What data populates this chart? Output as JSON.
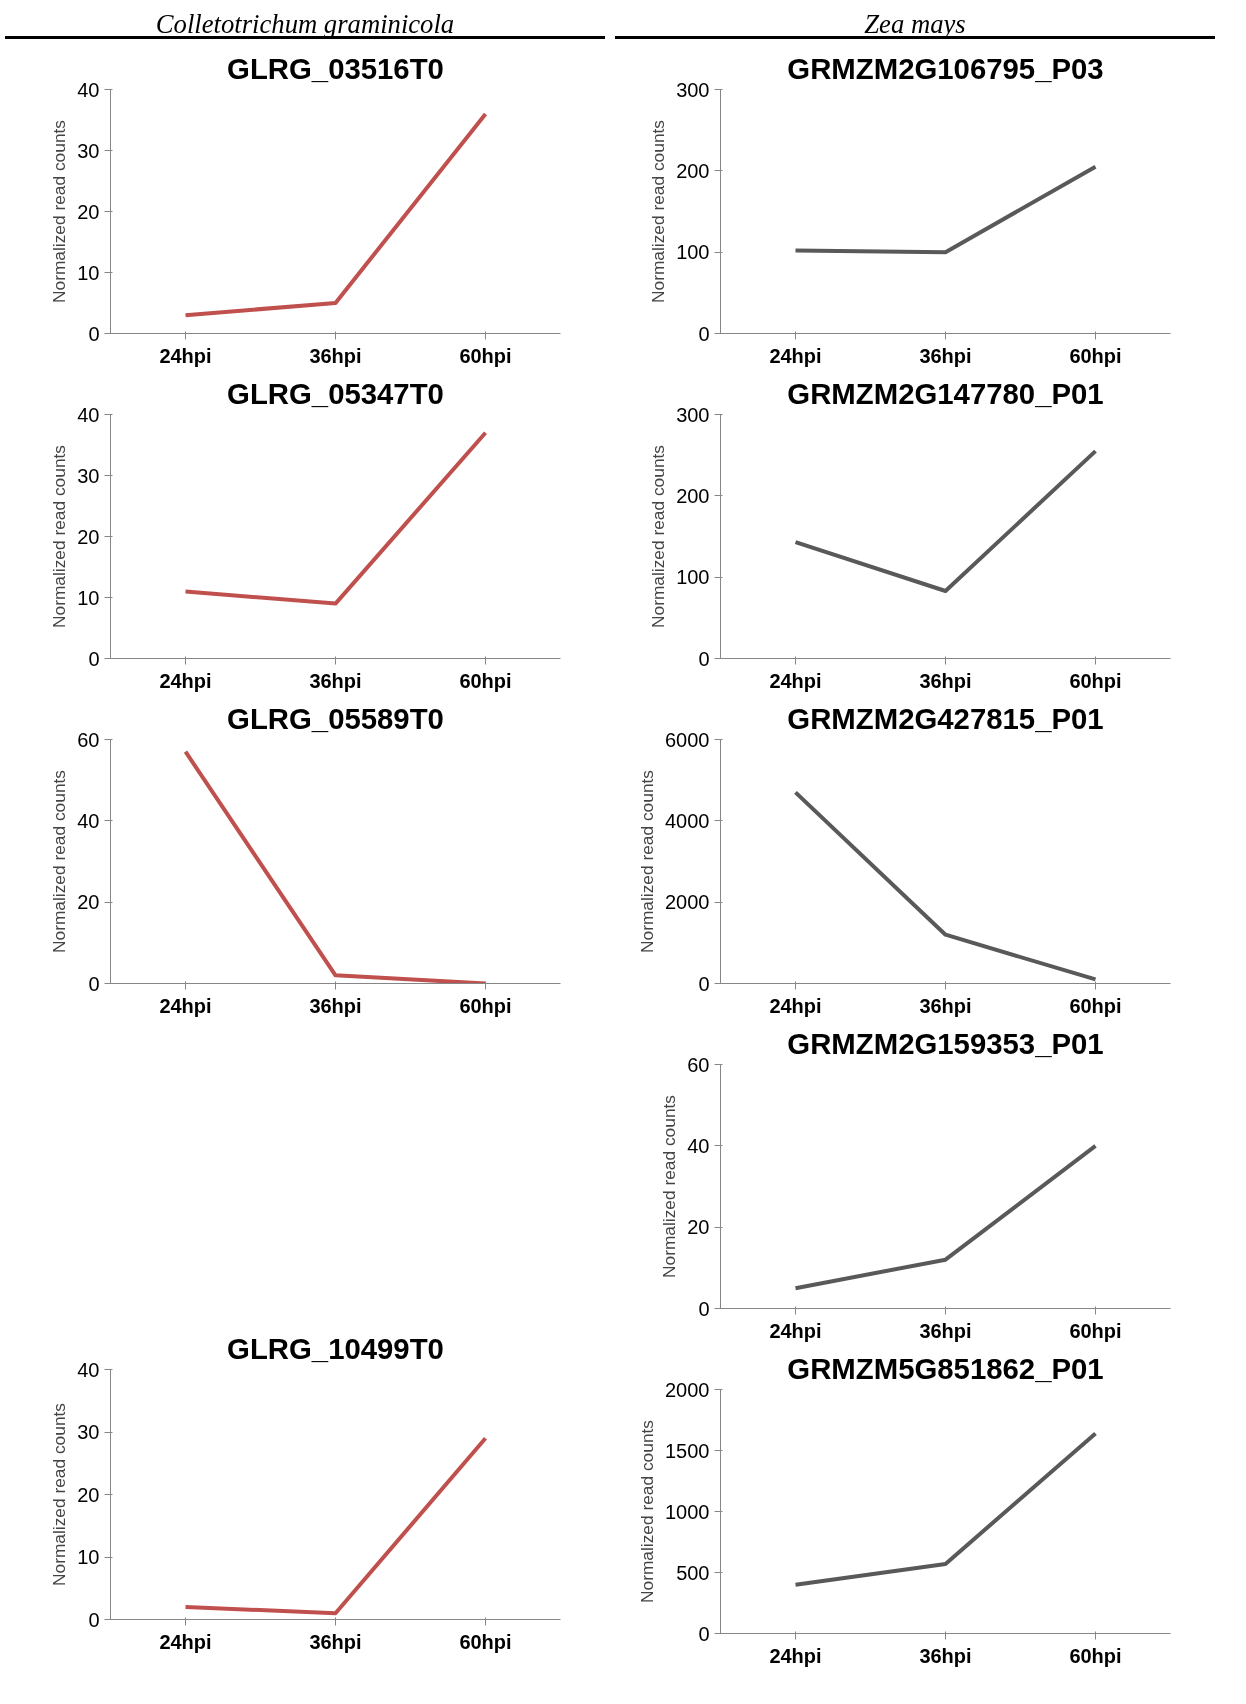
{
  "chart_data": [
    {
      "type": "line",
      "title": "GLRG_03516T0",
      "annotations": [
        "Colletotrichum graminicola"
      ],
      "ylabel": "Normalized read counts",
      "categories": [
        "24hpi",
        "36hpi",
        "60hpi"
      ],
      "series": [
        {
          "color": "#c0504d",
          "values": [
            3,
            5,
            36
          ]
        }
      ],
      "ylim": [
        0,
        40
      ],
      "yticks": [
        0,
        10,
        20,
        30,
        40
      ],
      "grid": false
    },
    {
      "type": "line",
      "title": "GLRG_05347T0",
      "ylabel": "Normalized read counts",
      "categories": [
        "24hpi",
        "36hpi",
        "60hpi"
      ],
      "series": [
        {
          "color": "#c0504d",
          "values": [
            11,
            9,
            37
          ]
        }
      ],
      "ylim": [
        0,
        40
      ],
      "yticks": [
        0,
        10,
        20,
        30,
        40
      ],
      "grid": false
    },
    {
      "type": "line",
      "title": "GLRG_05589T0",
      "ylabel": "Normalized read counts",
      "categories": [
        "24hpi",
        "36hpi",
        "60hpi"
      ],
      "series": [
        {
          "color": "#c0504d",
          "values": [
            57,
            2,
            0
          ]
        }
      ],
      "ylim": [
        0,
        60
      ],
      "yticks": [
        0,
        20,
        40,
        60
      ],
      "grid": false
    },
    {
      "type": "line",
      "title": "GLRG_10499T0",
      "ylabel": "Normalized read counts",
      "categories": [
        "24hpi",
        "36hpi",
        "60hpi"
      ],
      "series": [
        {
          "color": "#c0504d",
          "values": [
            2,
            1,
            29
          ]
        }
      ],
      "ylim": [
        0,
        40
      ],
      "yticks": [
        0,
        10,
        20,
        30,
        40
      ],
      "grid": false
    },
    {
      "type": "line",
      "title": "GRMZM2G106795_P03",
      "annotations": [
        "Zea mays"
      ],
      "ylabel": "Normalized read counts",
      "categories": [
        "24hpi",
        "36hpi",
        "60hpi"
      ],
      "series": [
        {
          "color": "#595959",
          "values": [
            102,
            100,
            205
          ]
        }
      ],
      "ylim": [
        0,
        300
      ],
      "yticks": [
        0,
        100,
        200,
        300
      ],
      "grid": false
    },
    {
      "type": "line",
      "title": "GRMZM2G147780_P01",
      "ylabel": "Normalized read counts",
      "categories": [
        "24hpi",
        "36hpi",
        "60hpi"
      ],
      "series": [
        {
          "color": "#595959",
          "values": [
            143,
            83,
            255
          ]
        }
      ],
      "ylim": [
        0,
        300
      ],
      "yticks": [
        0,
        100,
        200,
        300
      ],
      "grid": false
    },
    {
      "type": "line",
      "title": "GRMZM2G427815_P01",
      "ylabel": "Normalized read counts",
      "categories": [
        "24hpi",
        "36hpi",
        "60hpi"
      ],
      "series": [
        {
          "color": "#595959",
          "values": [
            4700,
            1200,
            100
          ]
        }
      ],
      "ylim": [
        0,
        6000
      ],
      "yticks": [
        0,
        2000,
        4000,
        6000
      ],
      "grid": false
    },
    {
      "type": "line",
      "title": "GRMZM2G159353_P01",
      "ylabel": "Normalized read counts",
      "categories": [
        "24hpi",
        "36hpi",
        "60hpi"
      ],
      "series": [
        {
          "color": "#595959",
          "values": [
            5,
            12,
            40
          ]
        }
      ],
      "ylim": [
        0,
        60
      ],
      "yticks": [
        0,
        20,
        40,
        60
      ],
      "grid": false
    },
    {
      "type": "line",
      "title": "GRMZM5G851862_P01",
      "ylabel": "Normalized read counts",
      "categories": [
        "24hpi",
        "36hpi",
        "60hpi"
      ],
      "series": [
        {
          "color": "#595959",
          "values": [
            400,
            570,
            1640
          ]
        }
      ],
      "ylim": [
        0,
        2000
      ],
      "yticks": [
        0,
        500,
        1000,
        1500,
        2000
      ],
      "grid": false
    }
  ]
}
